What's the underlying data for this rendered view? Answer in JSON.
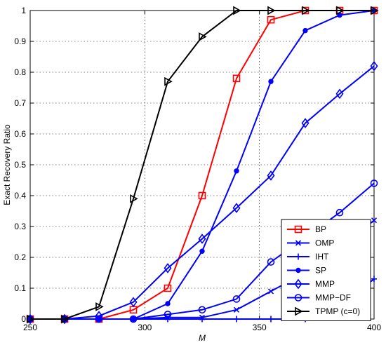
{
  "chart_data": {
    "type": "line",
    "xlabel": "M",
    "ylabel": "Exact Recovery Ratio",
    "xlim": [
      250,
      400
    ],
    "ylim": [
      0,
      1
    ],
    "xticks": [
      250,
      300,
      350,
      400
    ],
    "yticks": [
      0,
      0.1,
      0.2,
      0.3,
      0.4,
      0.5,
      0.6,
      0.7,
      0.8,
      0.9,
      1
    ],
    "grid": true,
    "legend_position": "bottom-right",
    "x": [
      250,
      265,
      280,
      295,
      310,
      325,
      340,
      355,
      370,
      385,
      400
    ],
    "series": [
      {
        "name": "BP",
        "color": "#ff0000",
        "marker": "square",
        "values": [
          0,
          0,
          0,
          0.03,
          0.1,
          0.4,
          0.78,
          0.97,
          1.0,
          1.0,
          1.0
        ]
      },
      {
        "name": "OMP",
        "color": "#0000ff",
        "marker": "x",
        "values": [
          0,
          0,
          0,
          0,
          0.005,
          0.005,
          0.03,
          0.09,
          0.15,
          0.23,
          0.32
        ]
      },
      {
        "name": "IHT",
        "color": "#0000ff",
        "marker": "plus",
        "values": [
          0,
          0,
          0,
          0,
          0,
          0,
          0,
          0,
          0,
          0.04,
          0.13
        ]
      },
      {
        "name": "SP",
        "color": "#0000ff",
        "marker": "dot",
        "values": [
          0,
          0,
          0,
          0,
          0.05,
          0.22,
          0.48,
          0.77,
          0.935,
          0.985,
          1.0
        ]
      },
      {
        "name": "MMP",
        "color": "#0000ff",
        "marker": "diamond",
        "values": [
          0,
          0,
          0.01,
          0.055,
          0.165,
          0.26,
          0.36,
          0.465,
          0.635,
          0.73,
          0.82
        ]
      },
      {
        "name": "MMP−DF",
        "color": "#0000ff",
        "marker": "circle",
        "values": [
          0,
          0,
          0,
          0,
          0.015,
          0.03,
          0.065,
          0.185,
          0.265,
          0.345,
          0.44
        ]
      },
      {
        "name": "TPMP (c=0)",
        "color": "#000000",
        "marker": "triangle-right",
        "values": [
          0,
          0,
          0.04,
          0.39,
          0.77,
          0.915,
          1.0,
          1.0,
          1.0,
          1.0,
          1.0
        ]
      }
    ]
  }
}
